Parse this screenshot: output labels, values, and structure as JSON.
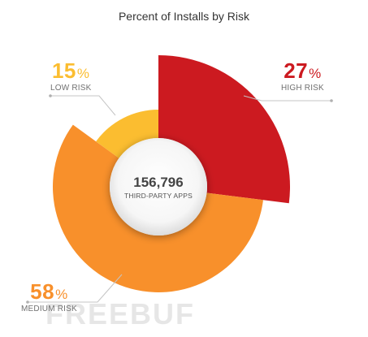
{
  "chart_data": {
    "type": "pie",
    "title": "Percent of Installs by Risk",
    "center": {
      "value": "156,796",
      "label": "THIRD-PARTY APPS"
    },
    "categories": [
      "HIGH RISK",
      "MEDIUM RISK",
      "LOW RISK"
    ],
    "values": [
      27,
      58,
      15
    ],
    "unit": "%",
    "colors": [
      "#cc1a20",
      "#f8902b",
      "#fbbd30"
    ]
  },
  "watermark": "FREEBUF"
}
